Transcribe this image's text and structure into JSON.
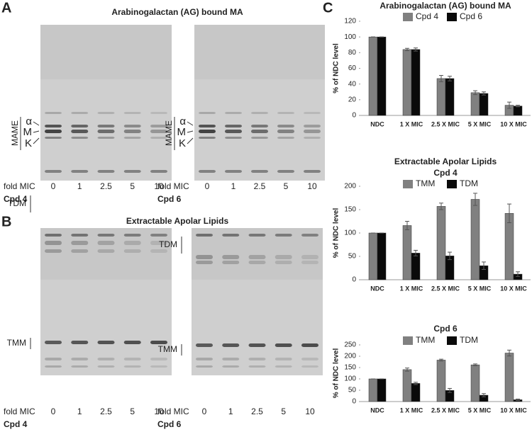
{
  "panel_labels": [
    "A",
    "B",
    "C"
  ],
  "panel_a": {
    "title": "Arabinogalactan (AG) bound MA",
    "gels": [
      {
        "fold_label": "fold MIC",
        "lanes": [
          "0",
          "1",
          "2.5",
          "5",
          "10"
        ],
        "compound": "Cpd 4",
        "bands": [
          "α",
          "M",
          "K"
        ],
        "group": "MAME"
      },
      {
        "fold_label": "fold MIC",
        "lanes": [
          "0",
          "1",
          "2.5",
          "5",
          "10"
        ],
        "compound": "Cpd 6",
        "bands": [
          "α",
          "M",
          "K"
        ],
        "group": "MAME"
      }
    ]
  },
  "panel_b": {
    "title": "Extractable Apolar Lipids",
    "gels": [
      {
        "fold_label": "fold MIC",
        "lanes": [
          "0",
          "1",
          "2.5",
          "5",
          "10"
        ],
        "compound": "Cpd 4",
        "bands": [
          "TDM",
          "TMM"
        ]
      },
      {
        "fold_label": "fold MIC",
        "lanes": [
          "0",
          "1",
          "2.5",
          "5",
          "10"
        ],
        "compound": "Cpd 6",
        "bands": [
          "TDM",
          "TMM"
        ]
      }
    ]
  },
  "chart_data": [
    {
      "type": "bar",
      "title": "Arabinogalactan (AG) bound MA",
      "ylabel": "% of NDC level",
      "categories": [
        "NDC",
        "1 X MIC",
        "2.5 X MIC",
        "5 X MIC",
        "10 X MIC"
      ],
      "series": [
        {
          "name": "Cpd 4",
          "color": "#808080",
          "values": [
            100,
            84,
            47,
            29,
            13
          ],
          "errors": [
            0,
            1.5,
            4,
            2.5,
            4
          ]
        },
        {
          "name": "Cpd 6",
          "color": "#0a0a0a",
          "values": [
            100,
            84,
            47,
            28,
            12
          ],
          "errors": [
            0,
            2,
            3,
            2,
            1
          ]
        }
      ],
      "ylim": [
        0,
        120
      ],
      "yticks": [
        0,
        20,
        40,
        60,
        80,
        100,
        120
      ]
    },
    {
      "type": "bar",
      "title": "Extractable Apolar Lipids",
      "subtitle": "Cpd 4",
      "ylabel": "% of NDC level",
      "categories": [
        "NDC",
        "1 X MIC",
        "2.5 X MIC",
        "5 X MIC",
        "10 X MIC"
      ],
      "series": [
        {
          "name": "TMM",
          "color": "#808080",
          "values": [
            100,
            116,
            157,
            172,
            142
          ],
          "errors": [
            0,
            9,
            7,
            13,
            20
          ]
        },
        {
          "name": "TDM",
          "color": "#0a0a0a",
          "values": [
            100,
            57,
            51,
            30,
            12
          ],
          "errors": [
            0,
            6,
            8,
            8,
            5
          ]
        }
      ],
      "ylim": [
        0,
        200
      ],
      "yticks": [
        0,
        50,
        100,
        150,
        200
      ]
    },
    {
      "type": "bar",
      "title": "Cpd 6",
      "ylabel": "% of NDC level",
      "categories": [
        "NDC",
        "1 X MIC",
        "2.5 X MIC",
        "5 X MIC",
        "10 X MIC"
      ],
      "series": [
        {
          "name": "TMM",
          "color": "#808080",
          "values": [
            100,
            141,
            183,
            162,
            214
          ],
          "errors": [
            0,
            7,
            4,
            4,
            13
          ]
        },
        {
          "name": "TDM",
          "color": "#0a0a0a",
          "values": [
            100,
            80,
            49,
            28,
            8
          ],
          "errors": [
            0,
            5,
            9,
            7,
            3
          ]
        }
      ],
      "ylim": [
        0,
        250
      ],
      "yticks": [
        0,
        50,
        100,
        150,
        200,
        250
      ]
    }
  ]
}
